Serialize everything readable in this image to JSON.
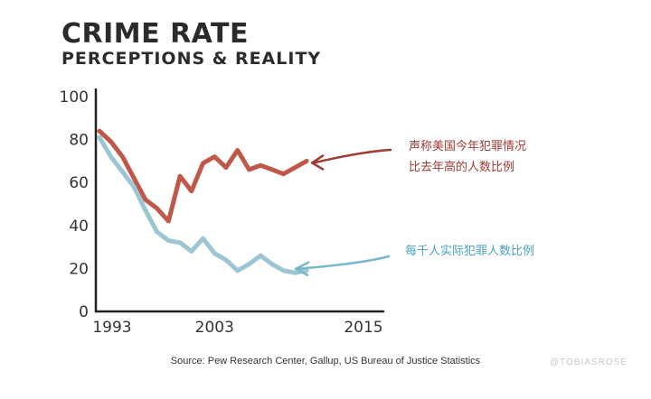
{
  "title": "CRIME RATE",
  "subtitle": "PERCEPTIONS & REALITY",
  "source": "Source: Pew Research Center, Gallup, US Bureau of Justice Statistics",
  "watermark": "@TOBIASROSE",
  "chart_data": {
    "type": "line",
    "title": "CRIME RATE",
    "subtitle": "PERCEPTIONS & REALITY",
    "xlabel": "",
    "ylabel": "",
    "xlim": [
      1993,
      2015
    ],
    "ylim": [
      0,
      100
    ],
    "x_ticks": [
      "1993",
      "2003",
      "2015"
    ],
    "y_ticks": [
      "0",
      "20",
      "40",
      "60",
      "80",
      "100"
    ],
    "grid": false,
    "legend": "none",
    "series": [
      {
        "name": "声称美国今年犯罪情况比去年高的人数比例",
        "label_lines": [
          "声称美国今年犯罪情况",
          "比去年高的人数比例"
        ],
        "color": "#c0584a",
        "label_color": "#a13a33",
        "arrow_color": "#a13a33",
        "x": [
          1993,
          1994,
          1995,
          1996,
          1997,
          1998,
          1999,
          2000,
          2001,
          2002,
          2003,
          2004,
          2005,
          2006,
          2007,
          2008,
          2009,
          2010,
          2011
        ],
        "y": [
          84,
          79,
          72,
          62,
          52,
          48,
          42,
          63,
          56,
          69,
          72,
          67,
          75,
          66,
          68,
          66,
          64,
          67,
          70
        ]
      },
      {
        "name": "每千人实际犯罪人数比例",
        "label_lines": [
          "每千人实际犯罪人数比例"
        ],
        "color": "#9cc6d2",
        "label_color": "#4aa3bd",
        "arrow_color": "#7ab7c8",
        "x": [
          1993,
          1994,
          1995,
          1996,
          1997,
          1998,
          1999,
          2000,
          2001,
          2002,
          2003,
          2004,
          2005,
          2006,
          2007,
          2008,
          2009,
          2010,
          2011
        ],
        "y": [
          81,
          72,
          65,
          58,
          47,
          37,
          33,
          32,
          28,
          34,
          27,
          24,
          19,
          22,
          26,
          22,
          19,
          18,
          19
        ]
      }
    ]
  }
}
